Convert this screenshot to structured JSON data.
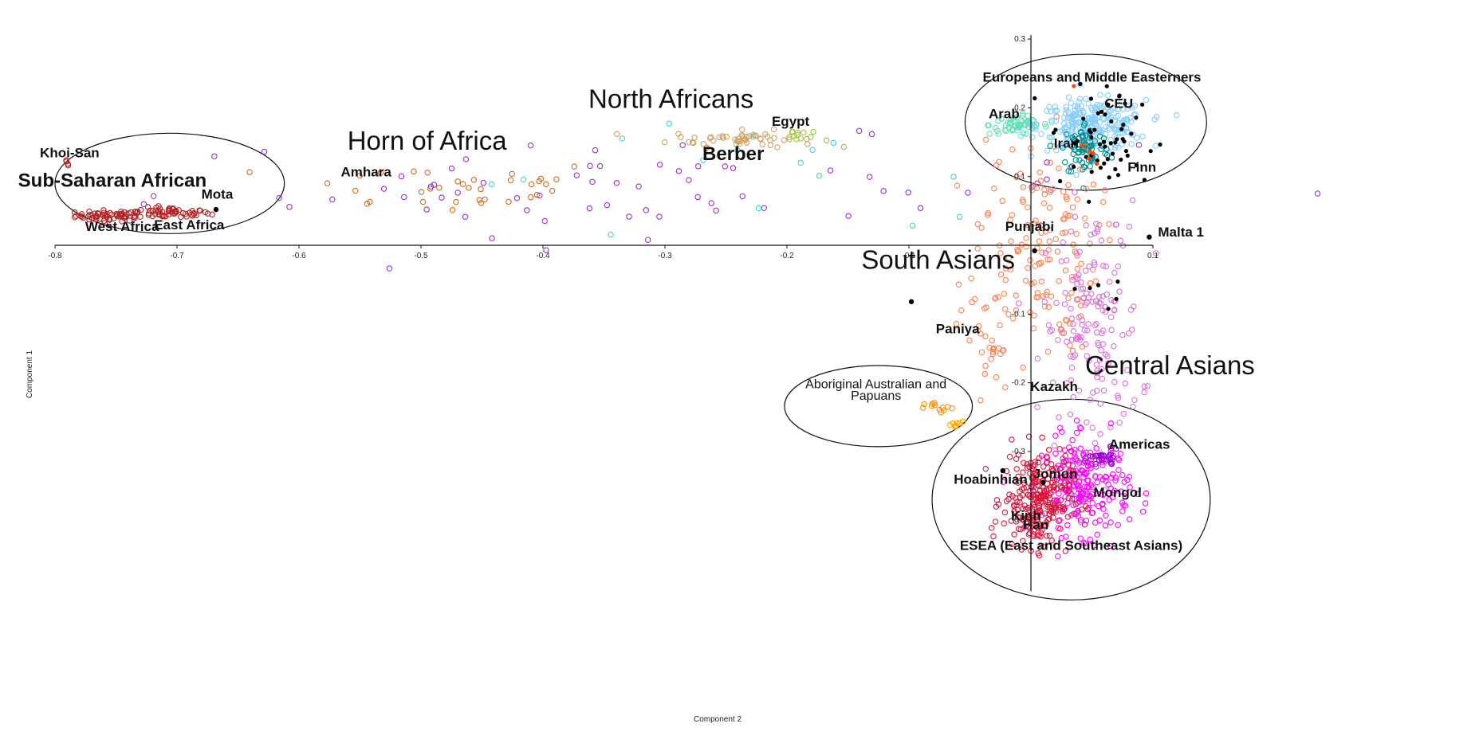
{
  "chart_data": {
    "type": "scatter",
    "title": "",
    "xlabel": "Component 2",
    "ylabel": "Component 1",
    "xlim": [
      -0.8,
      0.1
    ],
    "ylim": [
      -0.5,
      0.3
    ],
    "grid": false,
    "x_ticks": [
      -0.8,
      -0.7,
      -0.6,
      -0.5,
      -0.4,
      -0.3,
      -0.2,
      -0.1,
      0.1
    ],
    "x_tick_labels": [
      "-0.8",
      "-0.7",
      "-0.6",
      "-0.5",
      "-0.4",
      "-0.3",
      "-0.2",
      "-0.1",
      "0.1"
    ],
    "y_ticks": [
      0.3,
      0.2,
      0.1,
      -0.1,
      -0.2,
      -0.3,
      -0.4
    ],
    "y_tick_labels": [
      "0.3",
      "0.2",
      "0.1",
      "-0.1",
      "-0.2",
      "-0.3",
      "-0.4"
    ],
    "clusters": [
      {
        "color": "#a52a2a",
        "marker": "open",
        "cx": -0.79,
        "cy": 0.118,
        "sx": 0.002,
        "sy": 0.004,
        "n": 4
      },
      {
        "color": "#b22222",
        "marker": "open",
        "cx": -0.755,
        "cy": 0.043,
        "sx": 0.014,
        "sy": 0.004,
        "n": 60
      },
      {
        "color": "#b22222",
        "marker": "open",
        "cx": -0.705,
        "cy": 0.047,
        "sx": 0.016,
        "sy": 0.004,
        "n": 55
      },
      {
        "color": "#d2691e",
        "marker": "open",
        "cx": -0.48,
        "cy": 0.085,
        "sx": 0.07,
        "sy": 0.02,
        "n": 35
      },
      {
        "color": "#d2a060",
        "marker": "open",
        "cx": -0.235,
        "cy": 0.155,
        "sx": 0.03,
        "sy": 0.006,
        "n": 55
      },
      {
        "color": "#9acd32",
        "marker": "open",
        "cx": -0.195,
        "cy": 0.16,
        "sx": 0.008,
        "sy": 0.006,
        "n": 10
      },
      {
        "color": "#9932cc",
        "marker": "open",
        "cx": -0.32,
        "cy": 0.085,
        "sx": 0.2,
        "sy": 0.035,
        "n": 70
      },
      {
        "color": "#48d1cc",
        "marker": "open",
        "cx": -0.2,
        "cy": 0.1,
        "sx": 0.15,
        "sy": 0.04,
        "n": 16
      },
      {
        "color": "#5fe0b4",
        "marker": "open",
        "cx": -0.01,
        "cy": 0.175,
        "sx": 0.012,
        "sy": 0.007,
        "n": 60
      },
      {
        "color": "#87cefa",
        "marker": "open",
        "cx": 0.05,
        "cy": 0.175,
        "sx": 0.022,
        "sy": 0.018,
        "n": 240
      },
      {
        "color": "#008b8b",
        "marker": "open",
        "cx": 0.045,
        "cy": 0.14,
        "sx": 0.01,
        "sy": 0.02,
        "n": 80
      },
      {
        "color": "#ff7f50",
        "marker": "open",
        "cx": 0.005,
        "cy": 0.0,
        "sx": 0.025,
        "sy": 0.08,
        "n": 150
      },
      {
        "color": "#ff7f50",
        "marker": "open",
        "cx": -0.035,
        "cy": -0.14,
        "sx": 0.012,
        "sy": 0.06,
        "n": 30
      },
      {
        "color": "#ff8c00",
        "marker": "open",
        "cx": -0.075,
        "cy": -0.237,
        "sx": 0.006,
        "sy": 0.004,
        "n": 12
      },
      {
        "color": "#ffa500",
        "marker": "open",
        "cx": -0.06,
        "cy": -0.262,
        "sx": 0.005,
        "sy": 0.003,
        "n": 8
      },
      {
        "color": "#da70d6",
        "marker": "open",
        "cx": 0.05,
        "cy": -0.12,
        "sx": 0.02,
        "sy": 0.09,
        "n": 170
      },
      {
        "color": "#ff00ff",
        "marker": "open",
        "cx": 0.045,
        "cy": -0.35,
        "sx": 0.018,
        "sy": 0.035,
        "n": 220
      },
      {
        "color": "#9400d3",
        "marker": "open",
        "cx": 0.06,
        "cy": -0.31,
        "sx": 0.006,
        "sy": 0.006,
        "n": 25
      },
      {
        "color": "#dc143c",
        "marker": "open",
        "cx": 0.005,
        "cy": -0.37,
        "sx": 0.014,
        "sy": 0.035,
        "n": 260
      },
      {
        "color": "#000000",
        "marker": "filled",
        "cx": 0.06,
        "cy": 0.15,
        "sx": 0.022,
        "sy": 0.04,
        "n": 55
      },
      {
        "color": "#000000",
        "marker": "filled",
        "cx": 0.065,
        "cy": -0.06,
        "sx": 0.012,
        "sy": 0.02,
        "n": 6
      },
      {
        "color": "#ff4500",
        "marker": "filled",
        "cx": 0.045,
        "cy": 0.14,
        "sx": 0.004,
        "sy": 0.05,
        "n": 6
      }
    ],
    "points": [
      {
        "x": -0.668,
        "y": 0.052,
        "color": "#000000"
      },
      {
        "x": -0.098,
        "y": -0.082,
        "color": "#000000"
      },
      {
        "x": 0.097,
        "y": 0.012,
        "color": "#000000"
      },
      {
        "x": 0.01,
        "y": -0.345,
        "color": "#000000"
      },
      {
        "x": -0.023,
        "y": -0.328,
        "color": "#000000"
      },
      {
        "x": 0.003,
        "y": -0.008,
        "color": "#000000"
      }
    ],
    "annotations": [
      {
        "text": "Khoi-San",
        "x": -0.788,
        "y": 0.128,
        "style": "sm"
      },
      {
        "text": "Sub-Saharan African",
        "x": -0.753,
        "y": 0.085,
        "style": "med"
      },
      {
        "text": "Mota",
        "x": -0.667,
        "y": 0.068,
        "style": "sm"
      },
      {
        "text": "West Africa",
        "x": -0.745,
        "y": 0.021,
        "style": "sm"
      },
      {
        "text": "East Africa",
        "x": -0.69,
        "y": 0.023,
        "style": "sm"
      },
      {
        "text": "Amhara",
        "x": -0.545,
        "y": 0.1,
        "style": "sm"
      },
      {
        "text": "Horn of Africa",
        "x": -0.495,
        "y": 0.139,
        "style": "big"
      },
      {
        "text": "North Africans",
        "x": -0.295,
        "y": 0.2,
        "style": "big"
      },
      {
        "text": "Egypt",
        "x": -0.197,
        "y": 0.174,
        "style": "sm"
      },
      {
        "text": "Berber",
        "x": -0.244,
        "y": 0.124,
        "style": "med"
      },
      {
        "text": "Europeans and Middle Easterners",
        "x": 0.05,
        "y": 0.238,
        "style": "sm"
      },
      {
        "text": "CEU",
        "x": 0.072,
        "y": 0.2,
        "style": "sm"
      },
      {
        "text": "Arab",
        "x": -0.022,
        "y": 0.185,
        "style": "sm"
      },
      {
        "text": "Iran",
        "x": 0.029,
        "y": 0.142,
        "style": "sm"
      },
      {
        "text": "Finn",
        "x": 0.091,
        "y": 0.107,
        "style": "sm"
      },
      {
        "text": "Punjabi",
        "x": -0.001,
        "y": 0.021,
        "style": "sm"
      },
      {
        "text": "Malta 1",
        "x": 0.123,
        "y": 0.013,
        "style": "sm"
      },
      {
        "text": "South Asians",
        "x": -0.076,
        "y": -0.034,
        "style": "big"
      },
      {
        "text": "Paniya",
        "x": -0.06,
        "y": -0.128,
        "style": "sm"
      },
      {
        "text": "Central Asians",
        "x": 0.114,
        "y": -0.188,
        "style": "big"
      },
      {
        "text": "Kazakh",
        "x": 0.019,
        "y": -0.212,
        "style": "sm"
      },
      {
        "text": "Aboriginal Australian and",
        "x": -0.127,
        "y": -0.208,
        "style": "plain"
      },
      {
        "text": "Papuans",
        "x": -0.127,
        "y": -0.225,
        "style": "plain"
      },
      {
        "text": "Americas",
        "x": 0.089,
        "y": -0.296,
        "style": "sm"
      },
      {
        "text": "Jomon",
        "x": 0.02,
        "y": -0.339,
        "style": "sm"
      },
      {
        "text": "Hoabinhian",
        "x": -0.033,
        "y": -0.347,
        "style": "sm"
      },
      {
        "text": "Mongol",
        "x": 0.071,
        "y": -0.366,
        "style": "sm"
      },
      {
        "text": "Kinh",
        "x": -0.004,
        "y": -0.4,
        "style": "sm"
      },
      {
        "text": "Han",
        "x": 0.004,
        "y": -0.413,
        "style": "sm"
      },
      {
        "text": "ESEA (East and Southeast Asians)",
        "x": 0.033,
        "y": -0.443,
        "style": "sm"
      }
    ],
    "ellipses": [
      {
        "name": "sub-saharan-ellipse",
        "cx": -0.706,
        "cy": 0.09,
        "rx": 0.094,
        "ry": 0.073
      },
      {
        "name": "europe-me-ellipse",
        "cx": 0.045,
        "cy": 0.179,
        "rx": 0.099,
        "ry": 0.099
      },
      {
        "name": "aboriginal-ellipse",
        "cx": -0.125,
        "cy": -0.234,
        "rx": 0.077,
        "ry": 0.059
      },
      {
        "name": "esea-ellipse",
        "cx": 0.033,
        "cy": -0.37,
        "rx": 0.114,
        "ry": 0.146
      }
    ]
  }
}
